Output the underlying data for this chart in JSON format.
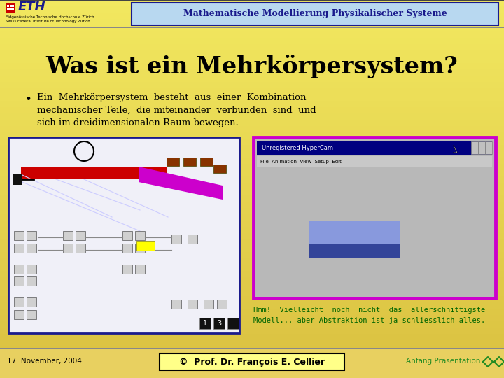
{
  "bg_top_color": "#f0e060",
  "bg_bottom_color": "#e8c840",
  "header_bg": "#b8d8f0",
  "header_border": "#1a1a8c",
  "header_text": "Mathematische Modellierung Physikalischer Systeme",
  "header_text_color": "#1a1a8c",
  "title": "Was ist ein Mehrkörpersystem?",
  "title_color": "#000000",
  "bullet_line1": "Ein  Mehrkörpersystem  besteht  aus  einer  Kombination",
  "bullet_line2": "mechanischer Teile,  die miteinander  verbunden  sind  und",
  "bullet_line3": "sich im dreidimensionalen Raum bewegen.",
  "bullet_color": "#000000",
  "caption_line1": "Hmm!  Vielleicht  noch  nicht  das  allerschnittigste",
  "caption_line2": "Modell... aber Abstraktion ist ja schliesslich alles.",
  "caption_color": "#006400",
  "footer_date": "17. November, 2004",
  "footer_prof_text": "©  Prof. Dr. François E. Cellier",
  "footer_prof_bg": "#ffff88",
  "footer_nav_text": "Anfang Präsentation",
  "footer_nav_color": "#228B22",
  "eth_bold": "ETH",
  "eth_color": "#1a1a8c",
  "eth_sub1": "Eidgenössische Technische Hochschule Zürich",
  "eth_sub2": "Swiss Federal Institute of Technology Zurich",
  "left_box_border": "#1a1a8c",
  "right_box_border": "#cc00cc",
  "right_box_bg": "#b8b8b8",
  "win_title_bg": "#000080",
  "win_title_text": "Unregistered HyperCam",
  "inner_rect_light": "#8899dd",
  "inner_rect_dark": "#334499",
  "sep_color": "#888888"
}
